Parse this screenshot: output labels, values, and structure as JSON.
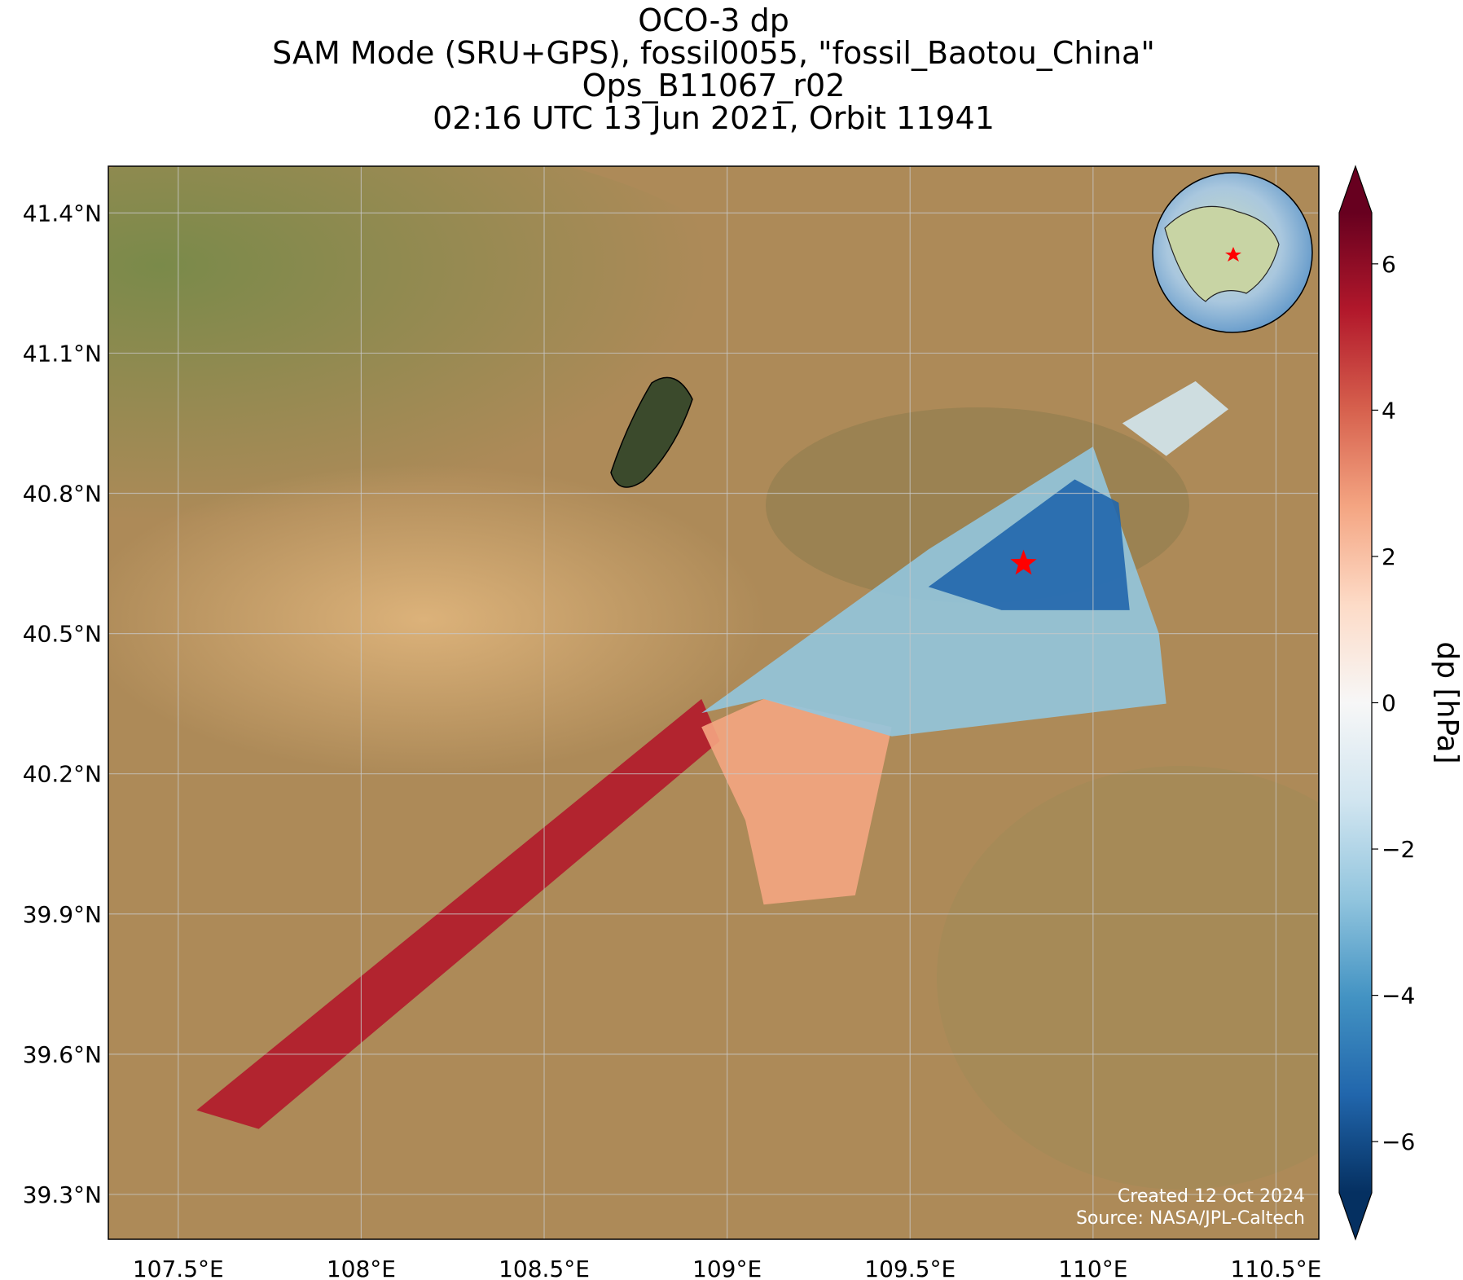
{
  "chart_data": {
    "type": "map",
    "title": [
      "OCO-3 dp",
      "SAM Mode (SRU+GPS), fossil0055, \"fossil_Baotou_China\"",
      "Ops_B11067_r02",
      "02:16 UTC 13 Jun 2021, Orbit 11941"
    ],
    "xlim": [
      107.309,
      110.617
    ],
    "ylim": [
      39.204,
      41.5
    ],
    "xticks": [
      {
        "value": 107.5,
        "label": "107.5°E"
      },
      {
        "value": 108,
        "label": "108°E"
      },
      {
        "value": 108.5,
        "label": "108.5°E"
      },
      {
        "value": 109,
        "label": "109°E"
      },
      {
        "value": 109.5,
        "label": "109.5°E"
      },
      {
        "value": 110,
        "label": "110°E"
      },
      {
        "value": 110.5,
        "label": "110.5°E"
      }
    ],
    "yticks": [
      {
        "value": 39.3,
        "label": "39.3°N"
      },
      {
        "value": 39.6,
        "label": "39.6°N"
      },
      {
        "value": 39.9,
        "label": "39.9°N"
      },
      {
        "value": 40.2,
        "label": "40.2°N"
      },
      {
        "value": 40.5,
        "label": "40.5°N"
      },
      {
        "value": 40.8,
        "label": "40.8°N"
      },
      {
        "value": 41.1,
        "label": "41.1°N"
      },
      {
        "value": 41.4,
        "label": "41.4°N"
      }
    ],
    "grid": true,
    "site": {
      "lon": 109.81,
      "lat": 40.65,
      "color": "#ff0000"
    },
    "colorbar": {
      "label": "dp [hPa]",
      "clim": [
        -6.7,
        6.7
      ],
      "ticks": [
        {
          "value": -6,
          "label": "−6"
        },
        {
          "value": -4,
          "label": "−4"
        },
        {
          "value": -2,
          "label": "−2"
        },
        0,
        2,
        4,
        6
      ],
      "colors": [
        "#053061",
        "#2166ac",
        "#4393c3",
        "#92c5de",
        "#d1e5f0",
        "#f7f7f7",
        "#fddbc7",
        "#f4a582",
        "#d6604d",
        "#b2182b",
        "#67001f"
      ]
    },
    "annotations": [
      "Created 12 Oct 2024",
      "Source: NASA/JPL-Caltech"
    ]
  }
}
